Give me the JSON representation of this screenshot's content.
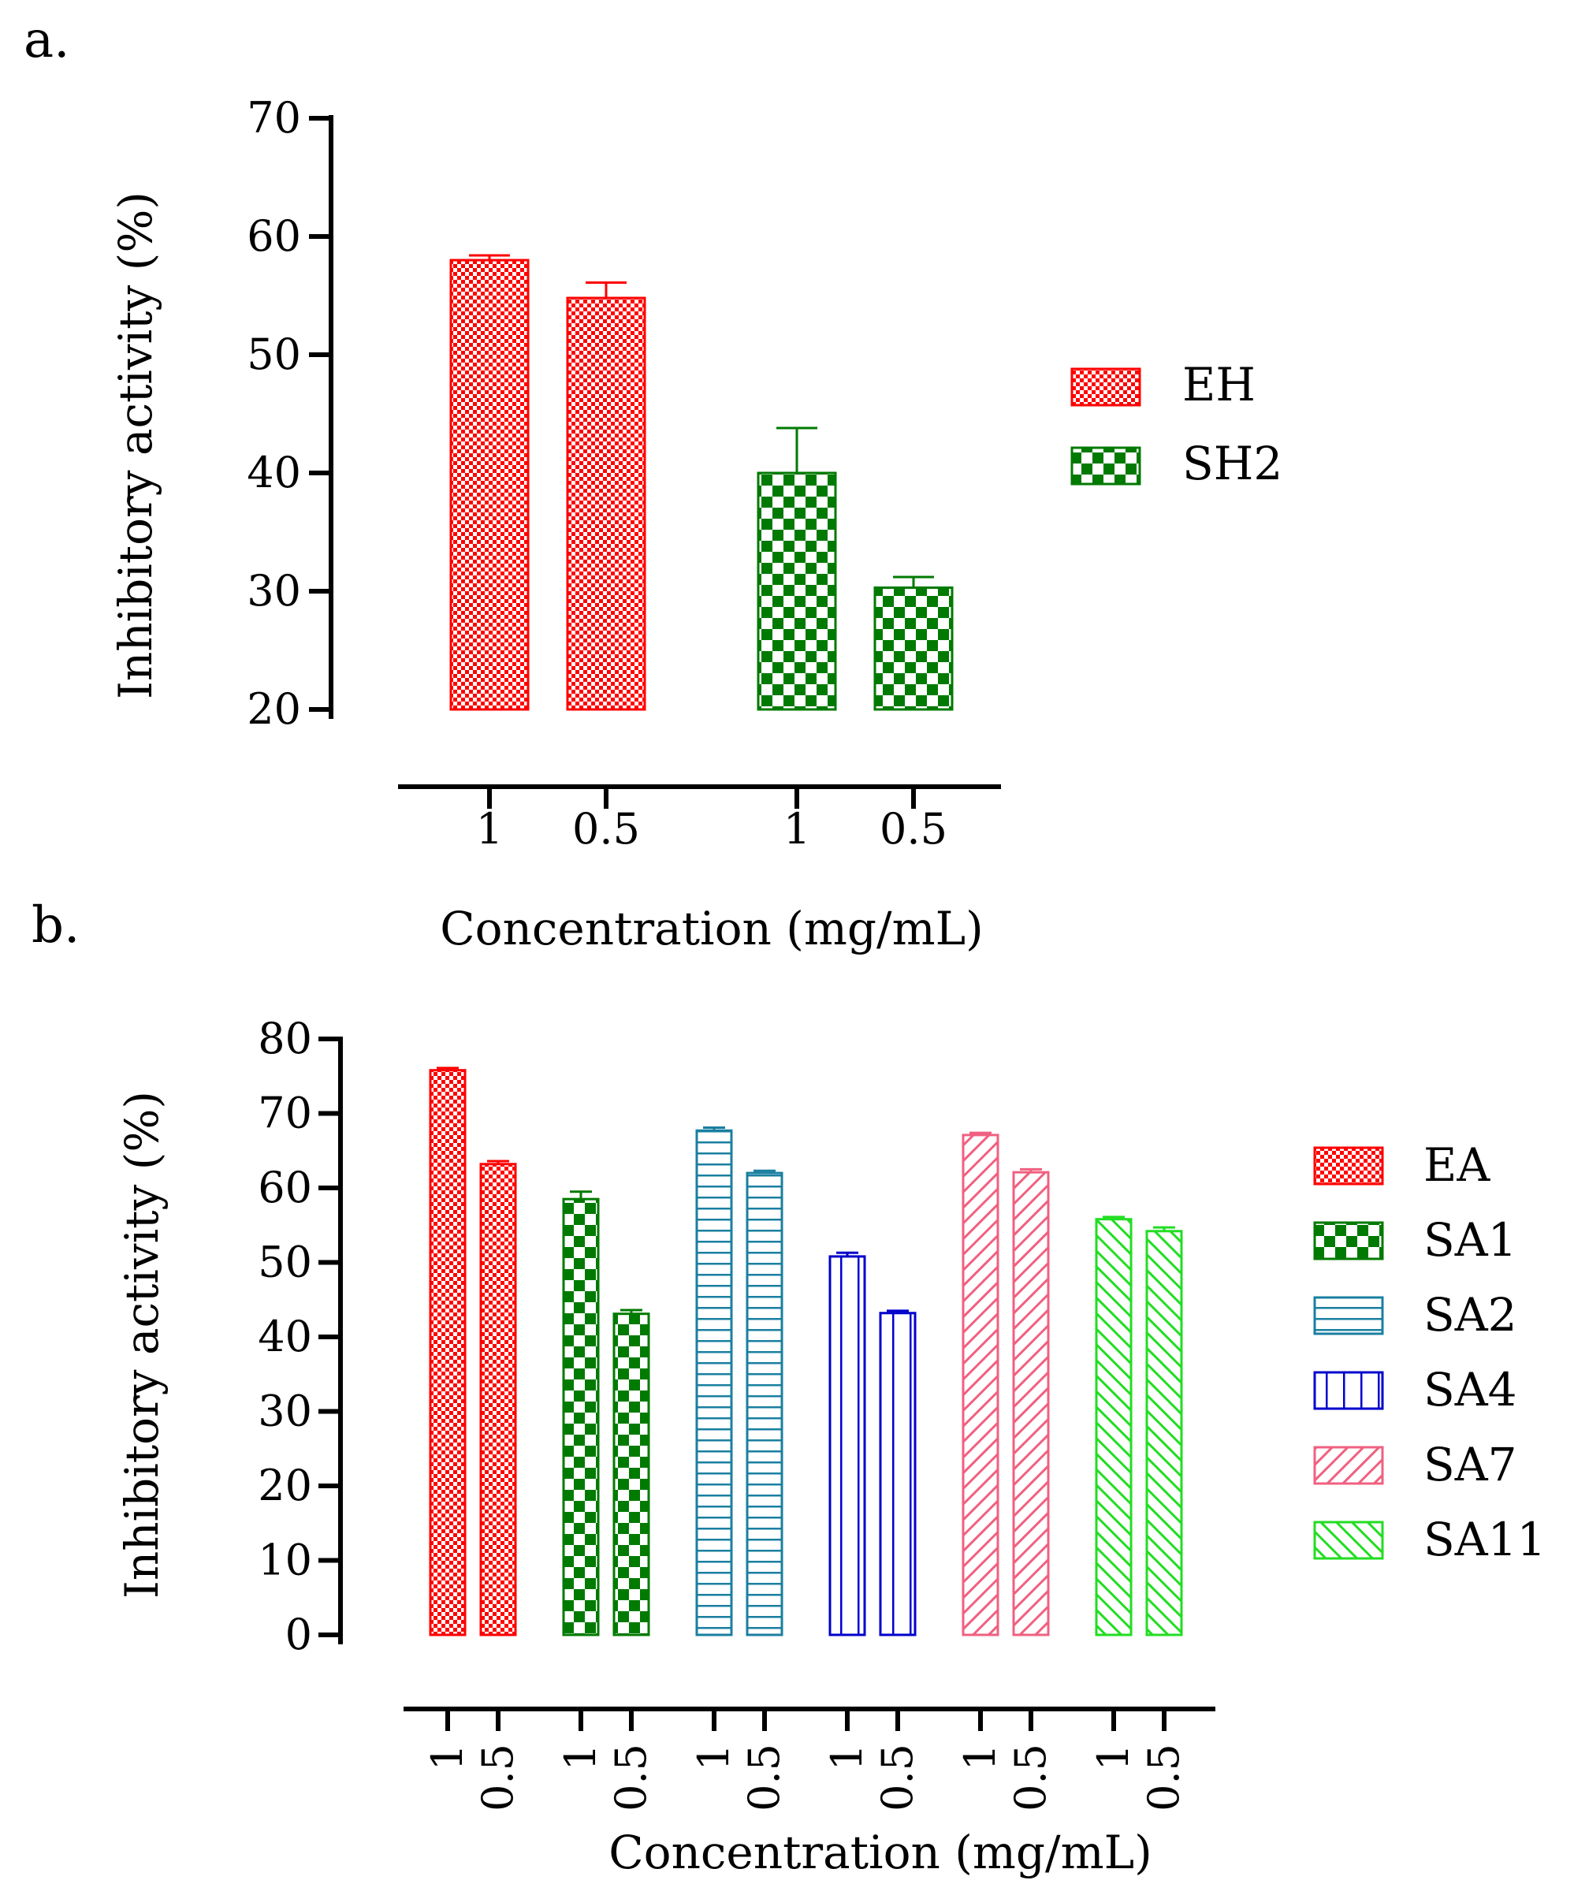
{
  "chart_data": [
    {
      "panel": "a.",
      "type": "bar",
      "ylabel": "Inhibitory activity (%)",
      "xlabel": "Concentration (mg/mL)",
      "ylim": [
        20,
        70
      ],
      "yticks": [
        20,
        30,
        40,
        50,
        60,
        70
      ],
      "categories": [
        "1",
        "0.5"
      ],
      "series": [
        {
          "name": "EH",
          "values": [
            58.0,
            54.8
          ],
          "errors": [
            0.4,
            1.3
          ],
          "color": "#ff0000",
          "pattern": "fine-check"
        },
        {
          "name": "SH2",
          "values": [
            40.0,
            30.3
          ],
          "errors": [
            3.8,
            0.9
          ],
          "color": "#007a00",
          "pattern": "coarse-check"
        }
      ],
      "legend": "right"
    },
    {
      "panel": "b.",
      "type": "bar",
      "ylabel": "Inhibitory activity (%)",
      "xlabel": "Concentration (mg/mL)",
      "ylim": [
        0,
        80
      ],
      "yticks": [
        0,
        10,
        20,
        30,
        40,
        50,
        60,
        70,
        80
      ],
      "categories": [
        "1",
        "0.5"
      ],
      "series": [
        {
          "name": "EA",
          "values": [
            75.8,
            63.2
          ],
          "errors": [
            0.3,
            0.4
          ],
          "color": "#ff0000",
          "pattern": "fine-check"
        },
        {
          "name": "SA1",
          "values": [
            58.5,
            43.1
          ],
          "errors": [
            1.0,
            0.5
          ],
          "color": "#007a00",
          "pattern": "coarse-check"
        },
        {
          "name": "SA2",
          "values": [
            67.7,
            62.0
          ],
          "errors": [
            0.4,
            0.3
          ],
          "color": "#1a7fa0",
          "pattern": "horizontal"
        },
        {
          "name": "SA4",
          "values": [
            50.8,
            43.2
          ],
          "errors": [
            0.5,
            0.3
          ],
          "color": "#0000cc",
          "pattern": "vertical"
        },
        {
          "name": "SA7",
          "values": [
            67.1,
            62.1
          ],
          "errors": [
            0.3,
            0.4
          ],
          "color": "#f06080",
          "pattern": "diag-up"
        },
        {
          "name": "SA11",
          "values": [
            55.8,
            54.2
          ],
          "errors": [
            0.3,
            0.5
          ],
          "color": "#22dd22",
          "pattern": "diag-down"
        }
      ],
      "legend": "right"
    }
  ]
}
